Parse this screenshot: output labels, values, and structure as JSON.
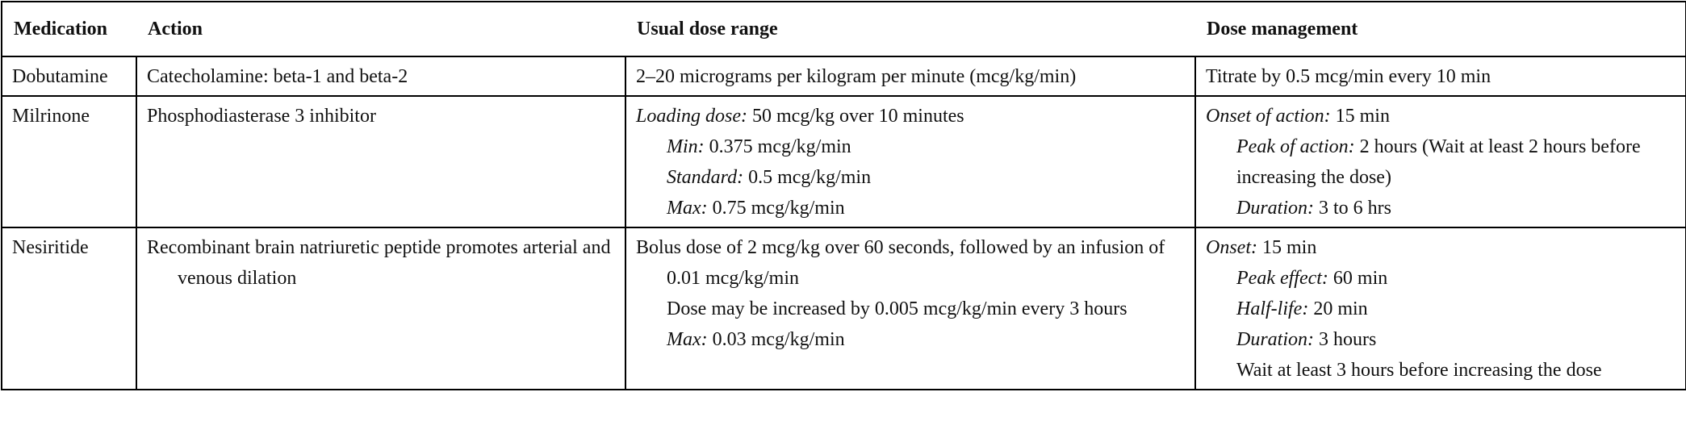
{
  "table": {
    "headers": [
      "Medication",
      "Action",
      "Usual dose range",
      "Dose management"
    ],
    "rows": [
      [
        [
          {
            "text": "Dobutamine"
          }
        ],
        [
          {
            "text": "Catecholamine: beta-1 and beta-2"
          }
        ],
        [
          {
            "text": "2–20 micrograms per kilogram per minute (mcg/kg/min)"
          }
        ],
        [
          {
            "text": "Titrate by 0.5 mcg/min every 10 min"
          }
        ]
      ],
      [
        [
          {
            "text": "Milrinone"
          }
        ],
        [
          {
            "text": "Phosphodiasterase 3 inhibitor"
          }
        ],
        [
          {
            "label": "Loading dose:",
            "text": "50 mcg/kg over 10 minutes"
          },
          {
            "label": "Min:",
            "text": "0.375 mcg/kg/min"
          },
          {
            "label": "Standard:",
            "text": "0.5 mcg/kg/min"
          },
          {
            "label": "Max:",
            "text": "0.75 mcg/kg/min"
          }
        ],
        [
          {
            "label": "Onset of action:",
            "text": "15 min"
          },
          {
            "label": "Peak of action:",
            "text": "2 hours (Wait at least 2 hours before increasing the dose)"
          },
          {
            "label": "Duration:",
            "text": "3 to 6 hrs"
          }
        ]
      ],
      [
        [
          {
            "text": "Nesiritide"
          }
        ],
        [
          {
            "text": "Recombinant brain natriuretic peptide promotes arterial and venous dilation"
          }
        ],
        [
          {
            "text": "Bolus dose of 2 mcg/kg over 60 seconds, followed by an infusion of 0.01 mcg/kg/min"
          },
          {
            "text": "Dose may be increased by 0.005 mcg/kg/min every 3 hours"
          },
          {
            "label": "Max:",
            "text": "0.03 mcg/kg/min"
          }
        ],
        [
          {
            "label": "Onset:",
            "text": "15 min"
          },
          {
            "label": "Peak effect:",
            "text": "60 min"
          },
          {
            "label": "Half-life:",
            "text": "20 min"
          },
          {
            "label": "Duration:",
            "text": "3 hours"
          },
          {
            "text": "Wait at least 3 hours before increasing the dose"
          }
        ]
      ]
    ]
  }
}
